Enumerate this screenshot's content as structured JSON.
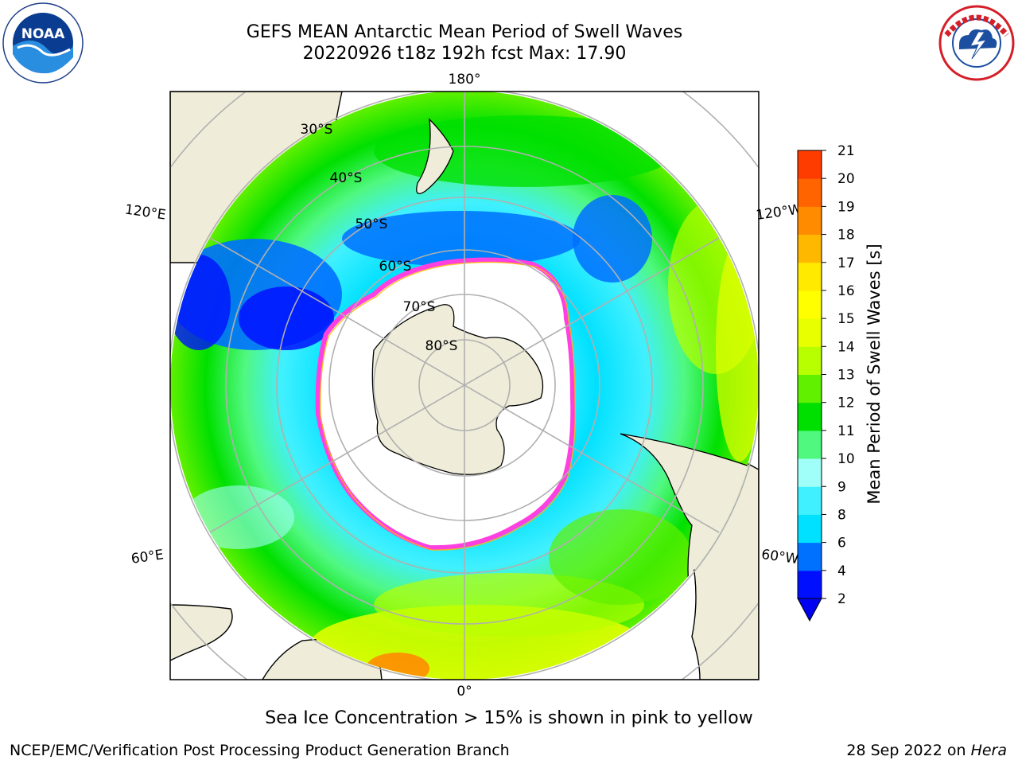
{
  "title": {
    "line1": "GEFS MEAN Antarctic Mean Period of Swell Waves",
    "line2": "20220926 t18z 192h fcst   Max: 17.90"
  },
  "map": {
    "projection": "south-polar-stereographic",
    "longitude_labels": [
      "180°",
      "120°E",
      "120°W",
      "60°E",
      "60°W",
      "0°"
    ],
    "latitude_labels": [
      "30°S",
      "40°S",
      "50°S",
      "60°S",
      "70°S",
      "80°S"
    ]
  },
  "colorbar": {
    "label": "Mean Period of Swell Waves [s]",
    "ticks": [
      "2",
      "4",
      "6",
      "8",
      "9",
      "10",
      "11",
      "12",
      "13",
      "14",
      "15",
      "16",
      "17",
      "18",
      "19",
      "20",
      "21"
    ],
    "colors": [
      "#0010ff",
      "#0070ff",
      "#00e0ff",
      "#40f0ff",
      "#a0fff8",
      "#50f880",
      "#00e000",
      "#60f000",
      "#b8ff00",
      "#e8ff00",
      "#ffff00",
      "#ffea00",
      "#ffb800",
      "#ff8c00",
      "#ff6400",
      "#ff3c00",
      "#ff0000"
    ],
    "extend_color": "#0000f0"
  },
  "subtitle": "Sea Ice Concentration > 15% is shown in pink to yellow",
  "footer": {
    "credit": "NCEP/EMC/Verification Post Processing Product Generation Branch",
    "date_prefix": "28 Sep 2022 on ",
    "host": "Hera"
  },
  "logos": {
    "noaa_text": "NOAA",
    "nws_text": "NATIONAL WEATHER SERVICE"
  }
}
